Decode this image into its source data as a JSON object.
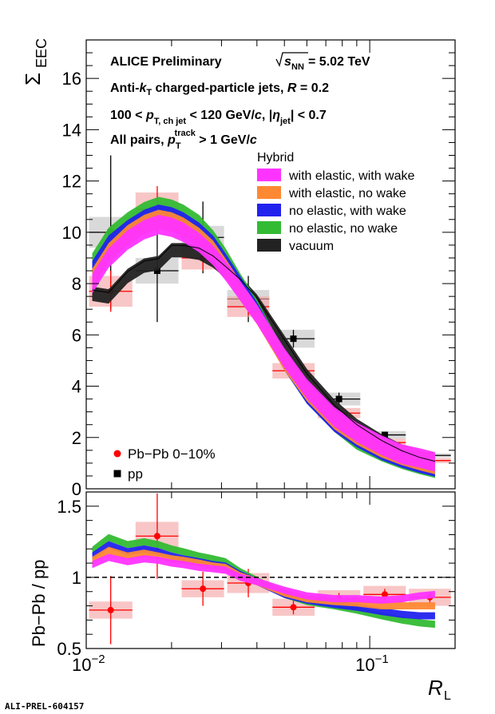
{
  "chart_data": {
    "type": "line",
    "x_scale": "log",
    "xlim": [
      0.01,
      0.2
    ],
    "xlabel": "R",
    "xlabel_sub": "L",
    "x_tick_labels": [
      {
        "base": "10",
        "exp": "−2",
        "x": 0.01
      },
      {
        "base": "10",
        "exp": "−1",
        "x": 0.1
      }
    ],
    "upper": {
      "ylabel": "Σ",
      "ylabel_sub": "EEC",
      "ylim": [
        0,
        17.5
      ],
      "y_ticks": [
        0,
        2,
        4,
        6,
        8,
        10,
        12,
        14,
        16
      ],
      "y_tick_labels": [
        "0",
        "2",
        "4",
        "6",
        "8",
        "10",
        "12",
        "14",
        "16"
      ],
      "header": {
        "line1": "ALICE Preliminary",
        "sqrt_s": "s",
        "sqrt_sub": "NN",
        "energy": " = 5.02 TeV",
        "line2a": "Anti-",
        "line2k": "k",
        "line2ksub": "T",
        "line2b": " charged-particle jets,  ",
        "line2R": "R",
        "line2c": " = 0.2",
        "line3a": "100 <  ",
        "line3p": "p",
        "line3psub": "T, ch jet",
        "line3b": " < 120 GeV/",
        "line3c": "c",
        "line3d": ", |",
        "line3eta": "η",
        "line3etasub": "jet",
        "line3e": "| < 0.7",
        "line4a": "All pairs,  ",
        "line4p": "p",
        "line4psub": "T",
        "line4psup": "track",
        "line4b": " > 1 GeV/",
        "line4c": "c"
      },
      "legend_title": "Hybrid",
      "pbpb_label": "Pb−Pb 0−10%",
      "pp_label": "pp"
    },
    "lower": {
      "ylabel": "Pb−Pb / pp",
      "ylim": [
        0.5,
        1.6
      ],
      "y_ticks": [
        0.5,
        1,
        1.5
      ],
      "y_tick_labels": [
        "0.5",
        "1",
        "1.5"
      ],
      "reference_line": 1
    },
    "model_x": [
      0.0105,
      0.012,
      0.014,
      0.016,
      0.018,
      0.02,
      0.022,
      0.025,
      0.028,
      0.031,
      0.035,
      0.04,
      0.05,
      0.06,
      0.075,
      0.09,
      0.11,
      0.13,
      0.15,
      0.17
    ],
    "series": [
      {
        "name": "with elastic, with wake",
        "color": "#ff33ff",
        "values": [
          8.0,
          9.0,
          9.7,
          10.1,
          10.3,
          10.2,
          10.0,
          9.6,
          9.1,
          8.5,
          7.7,
          6.8,
          5.1,
          3.9,
          2.8,
          2.2,
          1.7,
          1.35,
          1.2,
          1.05
        ],
        "ratio": [
          1.09,
          1.14,
          1.11,
          1.13,
          1.12,
          1.1,
          1.09,
          1.07,
          1.06,
          1.05,
          1.0,
          0.97,
          0.91,
          0.87,
          0.85,
          0.85,
          0.84,
          0.85,
          0.87,
          0.88
        ]
      },
      {
        "name": "with elastic, no wake",
        "color": "#ff8833",
        "values": [
          8.2,
          9.2,
          9.9,
          10.3,
          10.5,
          10.4,
          10.2,
          9.8,
          9.3,
          8.6,
          7.7,
          6.8,
          5.0,
          3.8,
          2.7,
          2.1,
          1.6,
          1.3,
          1.1,
          0.95
        ],
        "ratio": [
          1.12,
          1.19,
          1.15,
          1.17,
          1.15,
          1.13,
          1.12,
          1.1,
          1.08,
          1.07,
          1.01,
          0.97,
          0.89,
          0.85,
          0.83,
          0.82,
          0.8,
          0.8,
          0.8,
          0.8
        ]
      },
      {
        "name": "no elastic, with wake",
        "color": "#2222ee",
        "values": [
          8.5,
          9.5,
          10.1,
          10.5,
          10.7,
          10.6,
          10.4,
          10.0,
          9.5,
          8.8,
          7.9,
          6.9,
          5.0,
          3.7,
          2.6,
          2.0,
          1.5,
          1.2,
          1.0,
          0.85
        ],
        "ratio": [
          1.15,
          1.23,
          1.18,
          1.2,
          1.18,
          1.15,
          1.13,
          1.11,
          1.09,
          1.08,
          1.02,
          0.97,
          0.88,
          0.84,
          0.81,
          0.79,
          0.76,
          0.74,
          0.73,
          0.73
        ]
      },
      {
        "name": "no elastic, no wake",
        "color": "#33bb33",
        "values": [
          8.8,
          9.8,
          10.4,
          10.8,
          11.0,
          10.9,
          10.7,
          10.3,
          9.7,
          9.0,
          8.0,
          7.0,
          5.0,
          3.7,
          2.6,
          1.9,
          1.45,
          1.15,
          0.95,
          0.8
        ],
        "ratio": [
          1.19,
          1.28,
          1.23,
          1.25,
          1.23,
          1.2,
          1.18,
          1.15,
          1.13,
          1.11,
          1.04,
          0.98,
          0.88,
          0.83,
          0.8,
          0.77,
          0.73,
          0.7,
          0.68,
          0.67
        ]
      },
      {
        "name": "vacuum",
        "color": "#222222",
        "values": [
          7.6,
          7.5,
          8.3,
          8.7,
          8.8,
          9.3,
          9.3,
          9.2,
          8.9,
          8.5,
          8.0,
          7.3,
          5.7,
          4.4,
          3.2,
          2.45,
          1.85,
          1.45,
          1.2,
          1.05
        ],
        "ratio": null
      }
    ],
    "pp": {
      "x": [
        0.0122,
        0.0178,
        0.0258,
        0.0373,
        0.0538,
        0.0779,
        0.113,
        0.163
      ],
      "y": [
        10.0,
        8.5,
        9.8,
        7.4,
        5.85,
        3.5,
        2.1,
        1.3
      ],
      "y_err": [
        3.0,
        2.0,
        1.4,
        0.9,
        0.35,
        0.25,
        0.12,
        0.08
      ],
      "sys": [
        0.6,
        0.5,
        0.45,
        0.35,
        0.35,
        0.25,
        0.15,
        0.08
      ]
    },
    "pbpb": {
      "x": [
        0.0122,
        0.0178,
        0.0258,
        0.0373,
        0.0538,
        0.0779,
        0.113,
        0.163
      ],
      "y": [
        7.7,
        10.9,
        9.0,
        7.1,
        4.6,
        2.95,
        1.8,
        1.1
      ],
      "y_err": [
        0.8,
        0.9,
        0.5,
        0.35,
        0.1,
        0.08,
        0.06,
        0.05
      ],
      "sys": [
        0.6,
        0.65,
        0.45,
        0.4,
        0.3,
        0.2,
        0.15,
        0.1
      ]
    },
    "ratio_points": {
      "x": [
        0.0122,
        0.0178,
        0.0258,
        0.0373,
        0.0538,
        0.0779,
        0.113,
        0.163
      ],
      "y": [
        0.77,
        1.29,
        0.92,
        0.96,
        0.79,
        0.85,
        0.88,
        0.86
      ],
      "y_err": [
        0.24,
        0.3,
        0.12,
        0.1,
        0.05,
        0.04,
        0.04,
        0.04
      ],
      "sys": [
        0.06,
        0.1,
        0.06,
        0.07,
        0.06,
        0.06,
        0.06,
        0.06
      ]
    },
    "colors": {
      "pbpb": "#ff0000",
      "pbpb_box": "#f4a7a7",
      "pp": "#000000",
      "pp_box": "#c4c4c4"
    }
  },
  "footer_label": "ALI-PREL-604157"
}
